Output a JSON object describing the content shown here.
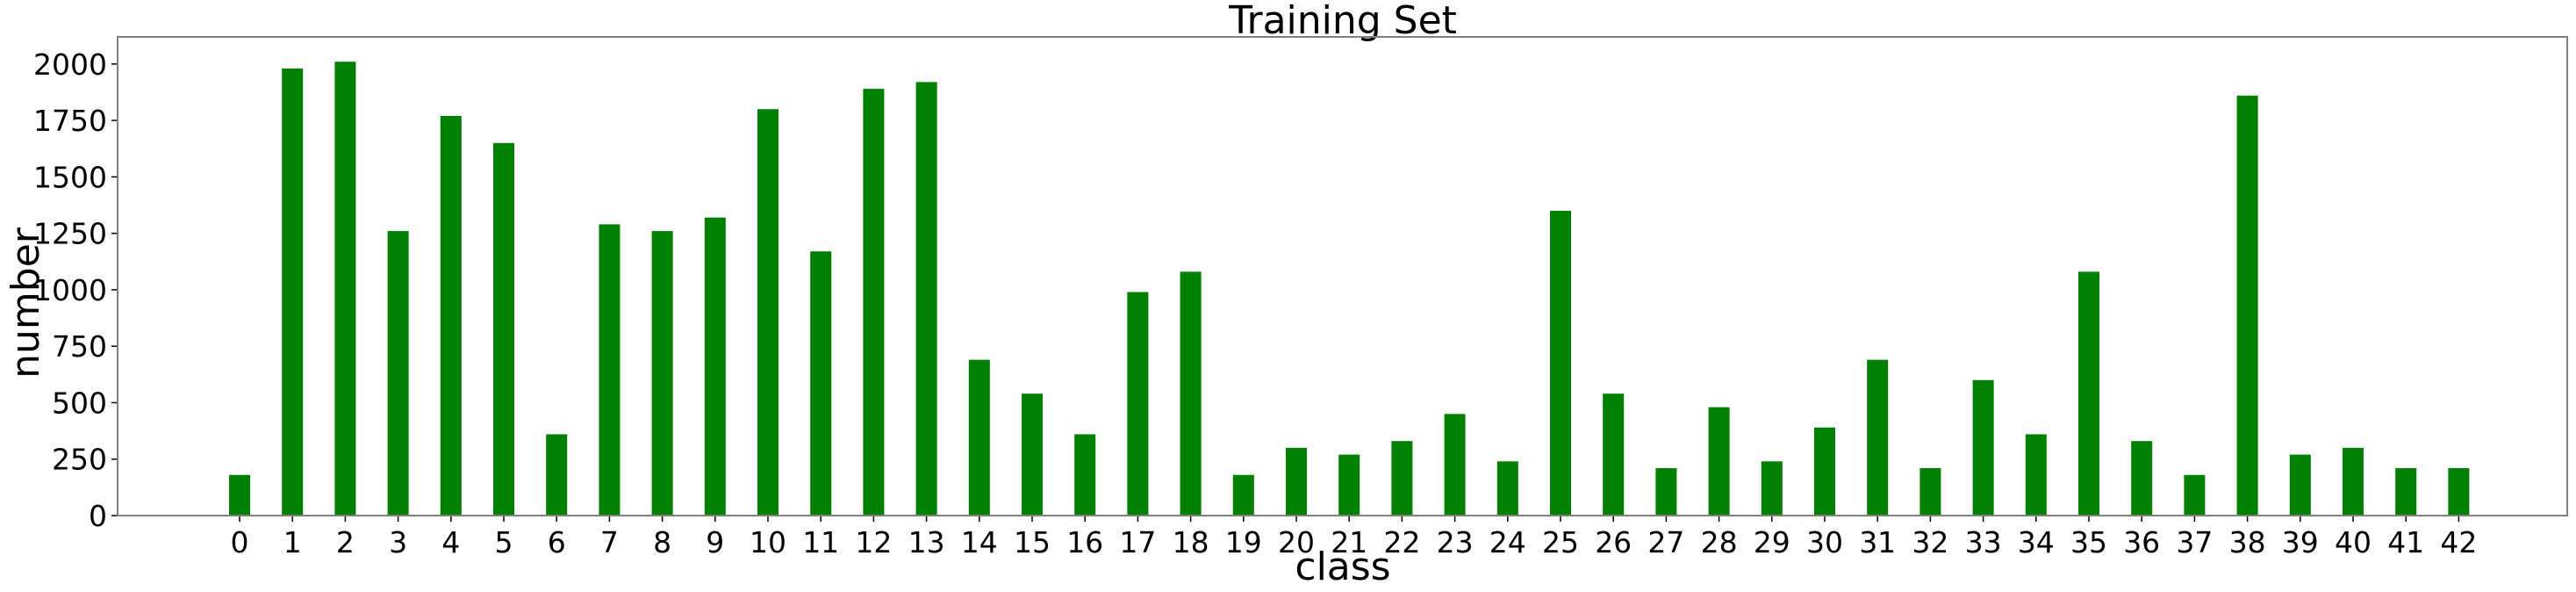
{
  "chart_data": {
    "type": "bar",
    "title": "Training Set",
    "xlabel": "class",
    "ylabel": "number",
    "bar_color": "#008000",
    "frame_color": "#808080",
    "grid": false,
    "legend": "none",
    "ylim": [
      0,
      2120
    ],
    "yticks": [
      0,
      250,
      500,
      750,
      1000,
      1250,
      1500,
      1750,
      2000
    ],
    "categories": [
      "0",
      "1",
      "2",
      "3",
      "4",
      "5",
      "6",
      "7",
      "8",
      "9",
      "10",
      "11",
      "12",
      "13",
      "14",
      "15",
      "16",
      "17",
      "18",
      "19",
      "20",
      "21",
      "22",
      "23",
      "24",
      "25",
      "26",
      "27",
      "28",
      "29",
      "30",
      "31",
      "32",
      "33",
      "34",
      "35",
      "36",
      "37",
      "38",
      "39",
      "40",
      "41",
      "42"
    ],
    "values": [
      180,
      1980,
      2010,
      1260,
      1770,
      1650,
      360,
      1290,
      1260,
      1320,
      1800,
      1170,
      1890,
      1920,
      690,
      540,
      360,
      990,
      1080,
      180,
      300,
      270,
      330,
      450,
      240,
      1350,
      540,
      210,
      480,
      240,
      390,
      690,
      210,
      600,
      360,
      1080,
      330,
      180,
      1860,
      270,
      300,
      210,
      210
    ]
  }
}
